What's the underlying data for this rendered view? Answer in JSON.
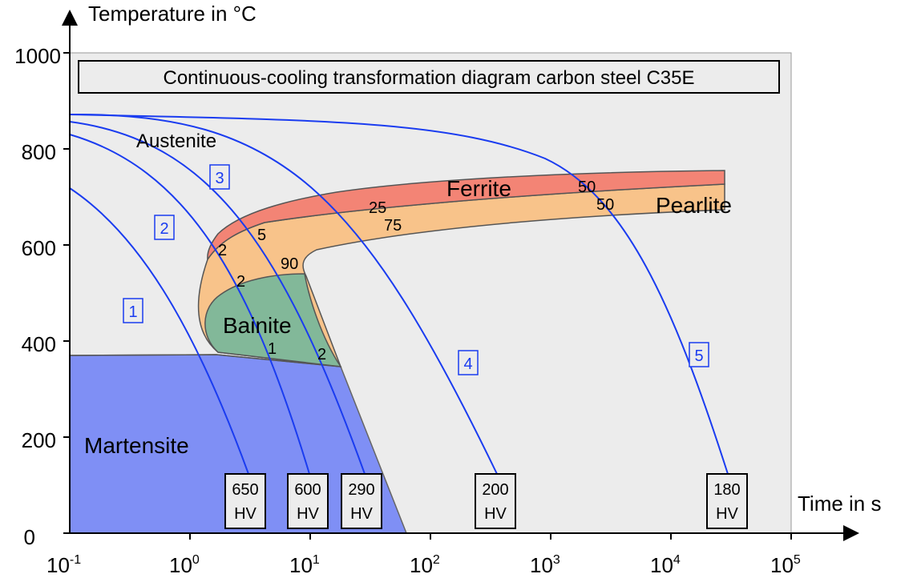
{
  "title": "Continuous-cooling transformation diagram carbon steel C35E",
  "axes": {
    "y_label": "Temperature in °C",
    "x_label": "Time in s",
    "y_ticks": [
      "0",
      "200",
      "400",
      "600",
      "800",
      "1000"
    ],
    "x_ticks": [
      {
        "base": "10",
        "exp": "-1"
      },
      {
        "base": "10",
        "exp": "0"
      },
      {
        "base": "10",
        "exp": "1"
      },
      {
        "base": "10",
        "exp": "2"
      },
      {
        "base": "10",
        "exp": "3"
      },
      {
        "base": "10",
        "exp": "4"
      },
      {
        "base": "10",
        "exp": "5"
      }
    ]
  },
  "phases": {
    "austenite": "Austenite",
    "ferrite": "Ferrite",
    "pearlite": "Pearlite",
    "bainite": "Bainite",
    "martensite": "Martensite"
  },
  "fractions": {
    "f2": "2",
    "f5": "5",
    "f25": "25",
    "f50a": "50",
    "p2": "2",
    "p90": "90",
    "p75": "75",
    "p50": "50",
    "b1": "1",
    "b2": "2"
  },
  "curves": [
    "1",
    "2",
    "3",
    "4",
    "5"
  ],
  "hardness": [
    {
      "value": "650",
      "unit": "HV"
    },
    {
      "value": "600",
      "unit": "HV"
    },
    {
      "value": "290",
      "unit": "HV"
    },
    {
      "value": "200",
      "unit": "HV"
    },
    {
      "value": "180",
      "unit": "HV"
    }
  ],
  "colors": {
    "plot_bg": "#ececec",
    "martensite": "#7f8ff5",
    "bainite": "#82b899",
    "pearlite": "#f8c38a",
    "ferrite": "#f38475",
    "cooling_curve": "#1a3cf0"
  }
}
